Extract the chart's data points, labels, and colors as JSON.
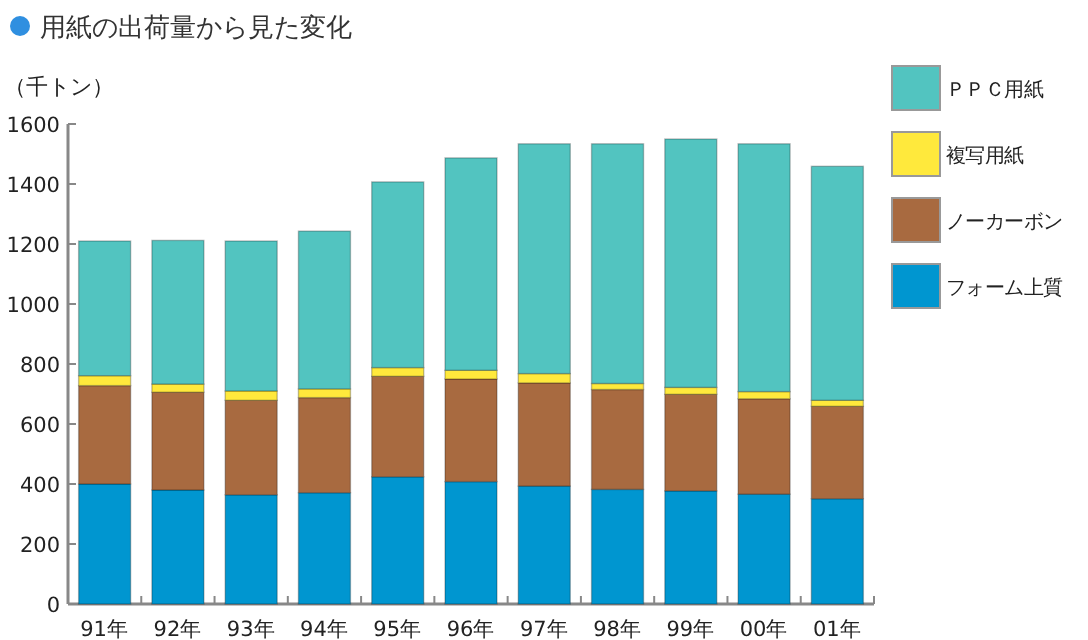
{
  "chart_data": {
    "type": "bar",
    "stacked": true,
    "title": "用紙の出荷量から見た変化",
    "ylabel": "（千トン）",
    "categories": [
      "91年",
      "92年",
      "93年",
      "94年",
      "95年",
      "96年",
      "97年",
      "98年",
      "99年",
      "00年",
      "01年"
    ],
    "series": [
      {
        "name": "フォーム上質",
        "color": "#0096d0",
        "values": [
          400,
          380,
          364,
          371,
          424,
          408,
          393,
          382,
          377,
          366,
          351
        ]
      },
      {
        "name": "ノーカーボン",
        "color": "#a86a40",
        "values": [
          328,
          326,
          315,
          317,
          335,
          342,
          344,
          333,
          322,
          318,
          308
        ]
      },
      {
        "name": "複写用紙",
        "color": "#ffe93c",
        "values": [
          33,
          27,
          31,
          29,
          29,
          29,
          31,
          20,
          23,
          24,
          20
        ]
      },
      {
        "name": "ＰＰＣ用紙",
        "color": "#52c4c0",
        "values": [
          449,
          479,
          500,
          526,
          619,
          708,
          766,
          799,
          828,
          826,
          780
        ]
      }
    ],
    "ylim": [
      0,
      1600
    ],
    "yticks": [
      0,
      200,
      400,
      600,
      800,
      1000,
      1200,
      1400,
      1600
    ],
    "legend": "right",
    "grid": false
  }
}
